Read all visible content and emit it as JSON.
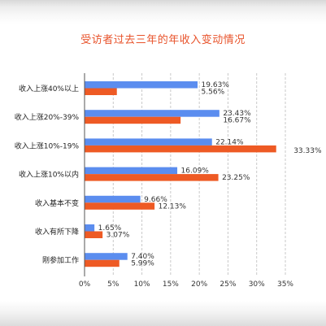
{
  "chart_data": {
    "type": "bar",
    "orientation": "horizontal",
    "title": "受访者过去三年的年收入变动情况",
    "categories": [
      "收入上涨40%以上",
      "收入上涨20%-39%",
      "收入上涨10%-19%",
      "收入上涨10%以内",
      "收入基本不变",
      "收入有所下降",
      "刚参加工作"
    ],
    "series": [
      {
        "color": "#5b8def",
        "values": [
          19.63,
          23.43,
          22.14,
          16.09,
          9.66,
          1.65,
          7.4
        ],
        "labels": [
          "19.63%",
          "23.43%",
          "22.14%",
          "16.09%",
          "9.66%",
          "1.65%",
          "7.40%"
        ]
      },
      {
        "color": "#ee5a24",
        "values": [
          5.56,
          16.67,
          33.33,
          23.25,
          12.13,
          3.07,
          5.99
        ],
        "labels": [
          "5.56%",
          "16.67%",
          "33.33%",
          "23.25%",
          "12.13%",
          "3.07%",
          "5.99%"
        ]
      }
    ],
    "xlim": [
      0,
      35
    ],
    "xticks": [
      0,
      5,
      10,
      15,
      20,
      25,
      30,
      35
    ],
    "xtick_labels": [
      "0%",
      "5%",
      "10%",
      "15%",
      "20%",
      "25%",
      "30%",
      "35%"
    ],
    "grid": "vertical dashed",
    "legend": "none"
  }
}
